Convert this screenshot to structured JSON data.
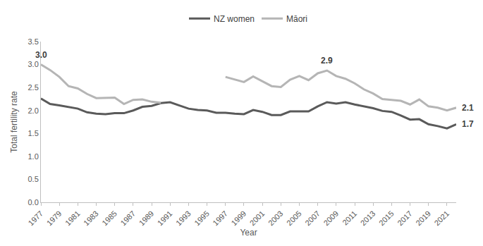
{
  "chart_data": {
    "type": "line",
    "x_label": "Year",
    "y_label": "Total fertility rate",
    "x": [
      1977,
      1978,
      1979,
      1980,
      1981,
      1982,
      1983,
      1984,
      1985,
      1986,
      1987,
      1988,
      1989,
      1990,
      1991,
      1992,
      1993,
      1994,
      1995,
      1996,
      1997,
      1998,
      1999,
      2000,
      2001,
      2002,
      2003,
      2004,
      2005,
      2006,
      2007,
      2008,
      2009,
      2010,
      2011,
      2012,
      2013,
      2014,
      2015,
      2016,
      2017,
      2018,
      2019,
      2020,
      2021,
      2022
    ],
    "series": [
      {
        "name": "NZ women",
        "color": "#5a5a5a",
        "values": [
          2.26,
          2.14,
          2.11,
          2.08,
          2.04,
          1.96,
          1.93,
          1.92,
          1.94,
          1.94,
          2.0,
          2.08,
          2.1,
          2.16,
          2.18,
          2.11,
          2.04,
          2.01,
          2.0,
          1.95,
          1.95,
          1.93,
          1.92,
          2.01,
          1.97,
          1.9,
          1.9,
          1.98,
          1.98,
          1.98,
          2.09,
          2.18,
          2.15,
          2.18,
          2.13,
          2.09,
          2.05,
          1.99,
          1.97,
          1.89,
          1.8,
          1.81,
          1.7,
          1.66,
          1.61,
          1.7
        ]
      },
      {
        "name": "Māori",
        "color": "#b5b5b5",
        "values": [
          3.0,
          2.88,
          2.73,
          2.53,
          2.48,
          2.36,
          2.27,
          2.28,
          2.28,
          2.14,
          2.23,
          2.24,
          2.19,
          2.17,
          null,
          null,
          null,
          null,
          null,
          null,
          2.73,
          2.67,
          2.62,
          2.74,
          2.63,
          2.53,
          2.51,
          2.67,
          2.75,
          2.66,
          2.81,
          2.87,
          2.75,
          2.69,
          2.59,
          2.46,
          2.37,
          2.25,
          2.23,
          2.21,
          2.13,
          2.24,
          2.09,
          2.06,
          2.0,
          2.06
        ]
      }
    ],
    "xlim": [
      1977,
      2022
    ],
    "xticks": [
      1977,
      1979,
      1981,
      1983,
      1985,
      1987,
      1989,
      1991,
      1993,
      1995,
      1997,
      1999,
      2001,
      2003,
      2005,
      2007,
      2009,
      2011,
      2013,
      2015,
      2017,
      2019,
      2021
    ],
    "ylim": [
      0,
      3.5
    ],
    "yticks": [
      {
        "value": 0,
        "label": "0.0"
      },
      {
        "value": 0.5,
        "label": "0.5"
      },
      {
        "value": 1,
        "label": "1.0"
      },
      {
        "value": 1.5,
        "label": "1.5"
      },
      {
        "value": 2,
        "label": "2.0"
      },
      {
        "value": 2.5,
        "label": "2.5"
      },
      {
        "value": 3,
        "label": "3.0"
      },
      {
        "value": 3.5,
        "label": "3.5"
      }
    ],
    "annotations": [
      {
        "x": 1977,
        "y": 3.0,
        "text": "3.0"
      },
      {
        "x": 2008,
        "y": 2.87,
        "text": "2.9"
      },
      {
        "x": 2022,
        "y": 2.06,
        "text": "2.1"
      },
      {
        "x": 2022,
        "y": 1.7,
        "text": "1.7"
      }
    ],
    "grid": false,
    "legend": "top"
  }
}
